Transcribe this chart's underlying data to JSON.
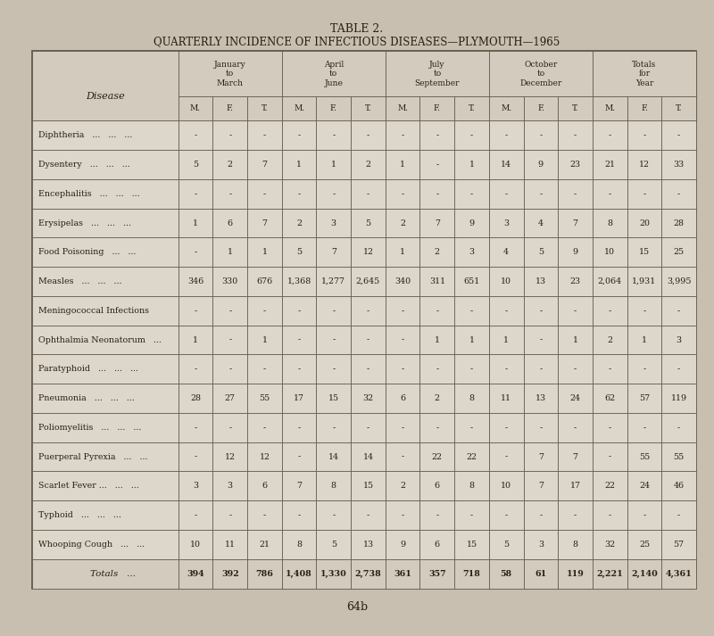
{
  "title1": "TABLE 2.",
  "title2": "QUARTERLY INCIDENCE OF INFECTIOUS DISEASES—PLYMOUTH—1965",
  "page_number": "64b",
  "background_color": "#c8bfb0",
  "cell_bg": "#ddd6cb",
  "header_bg": "#d4cbbf",
  "border_color": "#5a5040",
  "text_color": "#2a2010",
  "col_header_labels": [
    "January\nto\nMarch",
    "April\nto\nJune",
    "July\nto\nSeptember",
    "October\nto\nDecember",
    "Totals\nfor\nYear"
  ],
  "sub_headers": [
    "M.",
    "F.",
    "T."
  ],
  "diseases": [
    "Diphtheria   ...   ...   ...",
    "Dysentery   ...   ...   ...",
    "Encephalitis   ...   ...   ...",
    "Erysipelas   ...   ...   ...",
    "Food Poisoning   ...   ...",
    "Measles   ...   ...   ...",
    "Meningococcal Infections",
    "Ophthalmia Neonatorum   ...",
    "Paratyphoid   ...   ...   ...",
    "Pneumonia   ...   ...   ...",
    "Poliomyelitis   ...   ...   ...",
    "Puerperal Pyrexia   ...   ...",
    "Scarlet Fever ...   ...   ...",
    "Typhoid   ...   ...   ...",
    "Whooping Cough   ...   ...",
    "Totals   ..."
  ],
  "data": [
    [
      "-",
      "-",
      "-",
      "-",
      "-",
      "-",
      "-",
      "-",
      "-",
      "-",
      "-",
      "-",
      "-",
      "-",
      "-"
    ],
    [
      "5",
      "2",
      "7",
      "1",
      "1",
      "2",
      "1",
      "-",
      "1",
      "14",
      "9",
      "23",
      "21",
      "12",
      "33"
    ],
    [
      "-",
      "-",
      "-",
      "-",
      "-",
      "-",
      "-",
      "-",
      "-",
      "-",
      "-",
      "-",
      "-",
      "-",
      "-"
    ],
    [
      "1",
      "6",
      "7",
      "2",
      "3",
      "5",
      "2",
      "7",
      "9",
      "3",
      "4",
      "7",
      "8",
      "20",
      "28"
    ],
    [
      "-",
      "1",
      "1",
      "5",
      "7",
      "12",
      "1",
      "2",
      "3",
      "4",
      "5",
      "9",
      "10",
      "15",
      "25"
    ],
    [
      "346",
      "330",
      "676",
      "1,368",
      "1,277",
      "2,645",
      "340",
      "311",
      "651",
      "10",
      "13",
      "23",
      "2,064",
      "1,931",
      "3,995"
    ],
    [
      "-",
      "-",
      "-",
      "-",
      "-",
      "-",
      "-",
      "-",
      "-",
      "-",
      "-",
      "-",
      "-",
      "-",
      "-"
    ],
    [
      "1",
      "-",
      "1",
      "-",
      "-",
      "-",
      "-",
      "1",
      "1",
      "1",
      "-",
      "1",
      "2",
      "1",
      "3"
    ],
    [
      "-",
      "-",
      "-",
      "-",
      "-",
      "-",
      "-",
      "-",
      "-",
      "-",
      "-",
      "-",
      "-",
      "-",
      "-"
    ],
    [
      "28",
      "27",
      "55",
      "17",
      "15",
      "32",
      "6",
      "2",
      "8",
      "11",
      "13",
      "24",
      "62",
      "57",
      "119"
    ],
    [
      "-",
      "-",
      "-",
      "-",
      "-",
      "-",
      "-",
      "-",
      "-",
      "-",
      "-",
      "-",
      "-",
      "-",
      "-"
    ],
    [
      "-",
      "12",
      "12",
      "-",
      "14",
      "14",
      "-",
      "22",
      "22",
      "-",
      "7",
      "7",
      "-",
      "55",
      "55"
    ],
    [
      "3",
      "3",
      "6",
      "7",
      "8",
      "15",
      "2",
      "6",
      "8",
      "10",
      "7",
      "17",
      "22",
      "24",
      "46"
    ],
    [
      "-",
      "-",
      "-",
      "-",
      "-",
      "-",
      "-",
      "-",
      "-",
      "-",
      "-",
      "-",
      "-",
      "-",
      "-"
    ],
    [
      "10",
      "11",
      "21",
      "8",
      "5",
      "13",
      "9",
      "6",
      "15",
      "5",
      "3",
      "8",
      "32",
      "25",
      "57"
    ],
    [
      "394",
      "392",
      "786",
      "1,408",
      "1,330",
      "2,738",
      "361",
      "357",
      "718",
      "58",
      "61",
      "119",
      "2,221",
      "2,140",
      "4,361"
    ]
  ],
  "is_total_row": [
    false,
    false,
    false,
    false,
    false,
    false,
    false,
    false,
    false,
    false,
    false,
    false,
    false,
    false,
    false,
    true
  ]
}
